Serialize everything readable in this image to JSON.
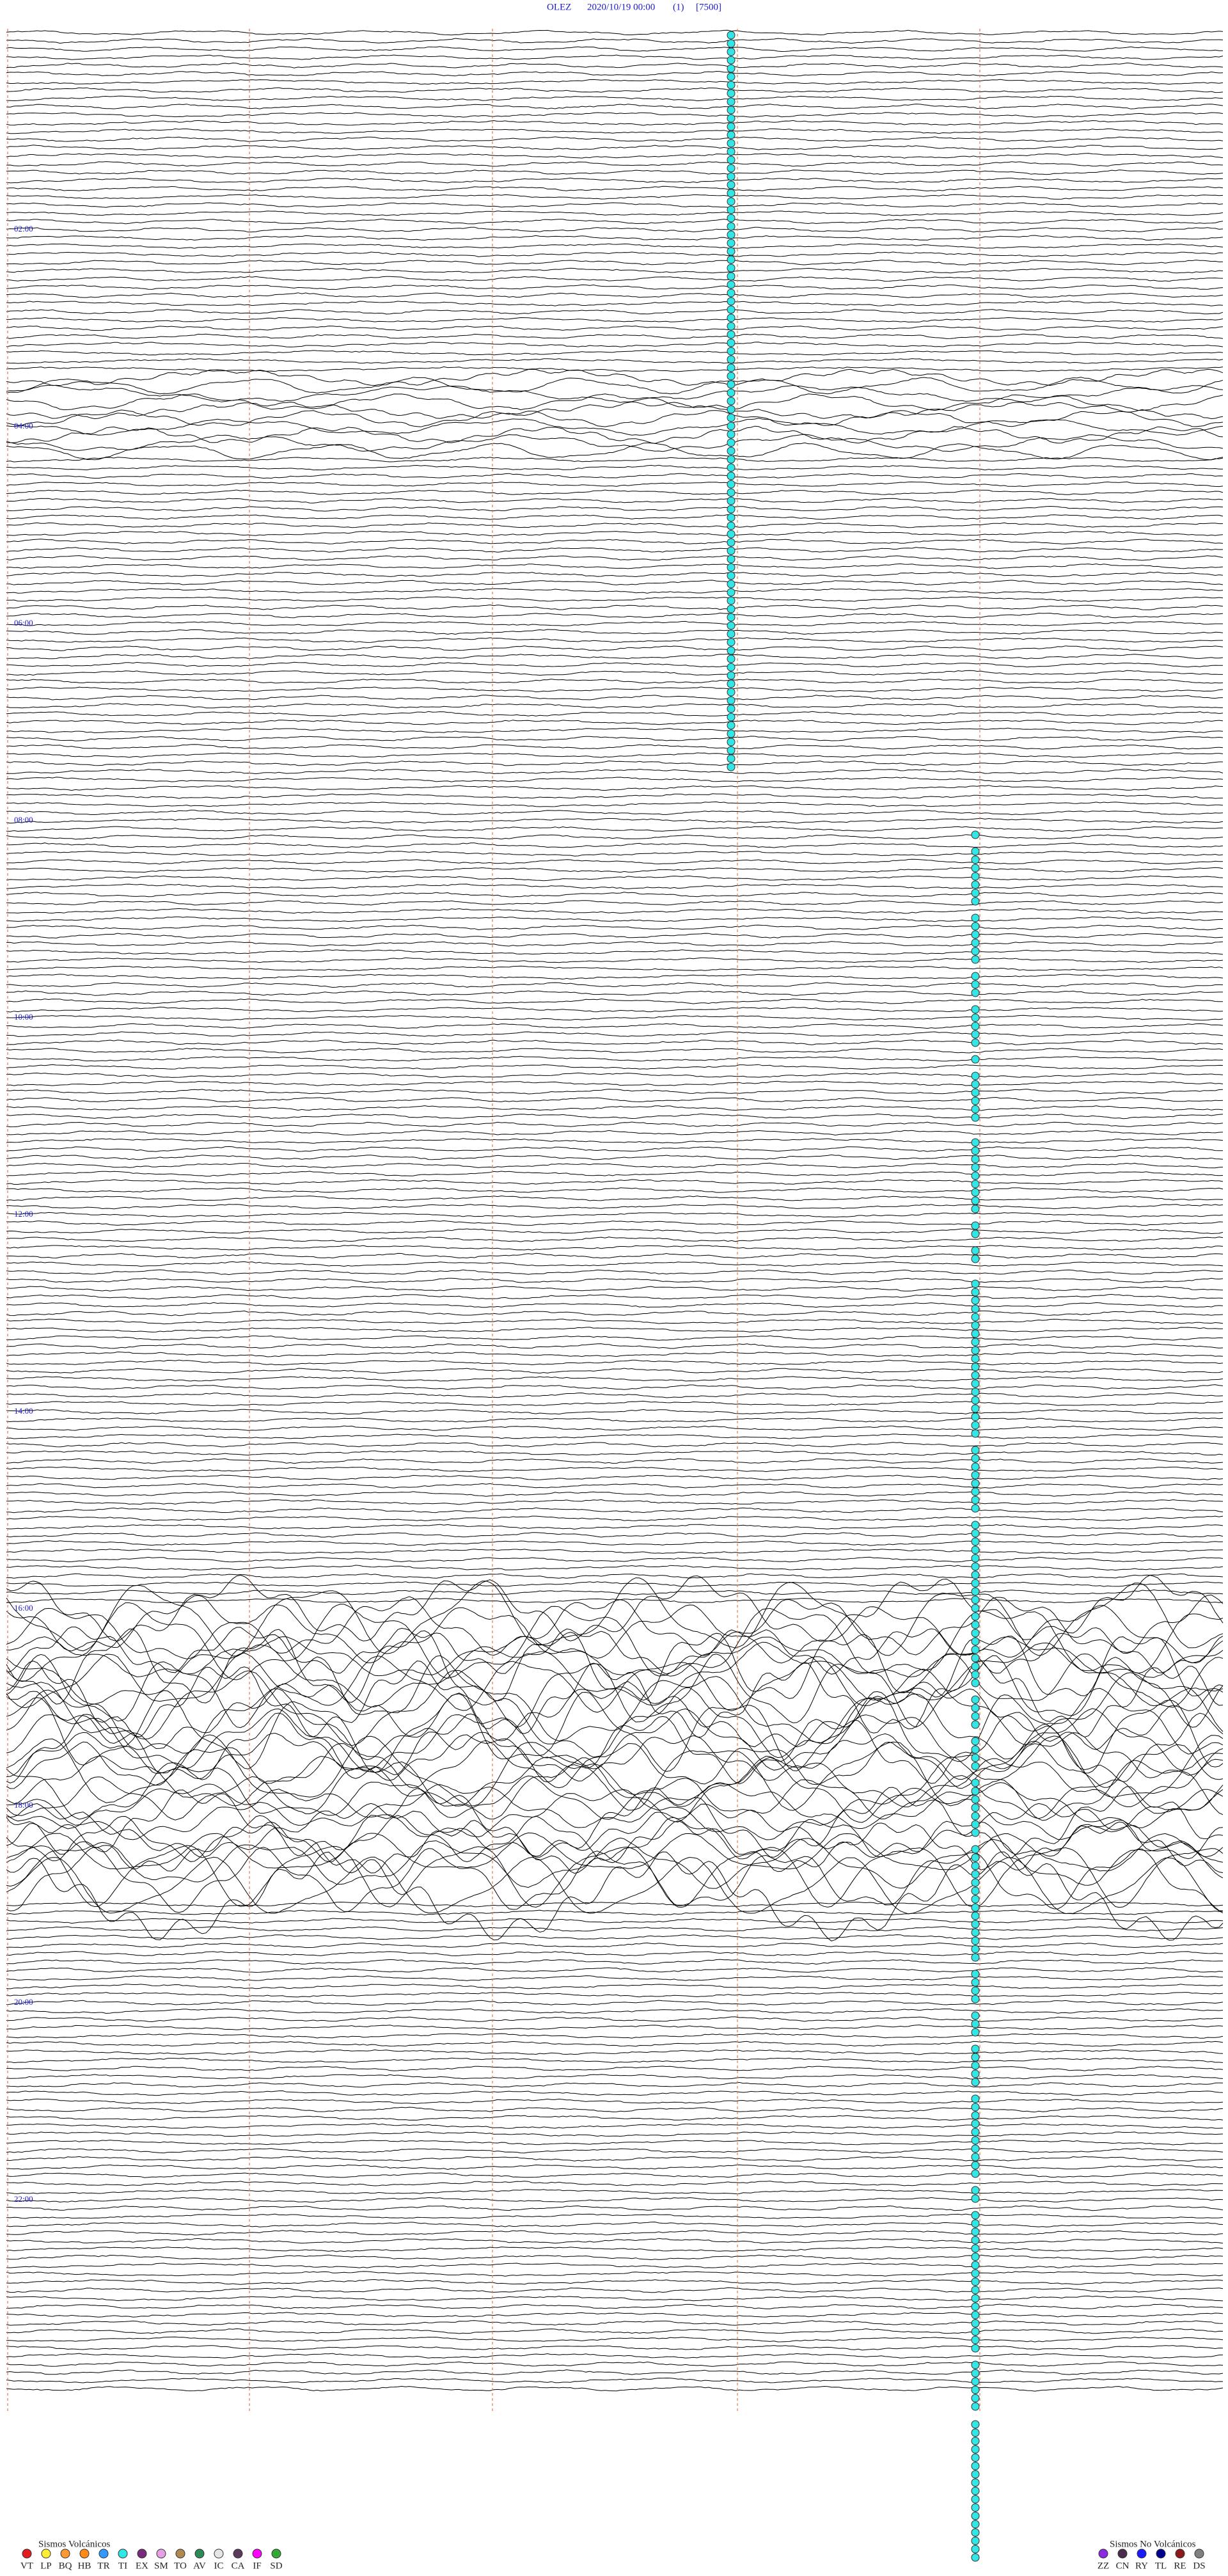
{
  "header": {
    "station": "OLEZ",
    "datetime": "2020/10/19 00:00",
    "channel": "(1)",
    "scale": "[7500]"
  },
  "hour_labels": [
    "02:00",
    "04:00",
    "06:00",
    "08:00",
    "10:00",
    "12:00",
    "14:00",
    "16:00",
    "18:00",
    "20:00",
    "22:00"
  ],
  "legend_volcanic": {
    "title": "Sismos Volcánicos",
    "items": [
      {
        "name": "VT",
        "color": "#e41a1c"
      },
      {
        "name": "LP",
        "color": "#ffee33"
      },
      {
        "name": "BQ",
        "color": "#ff9933"
      },
      {
        "name": "HB",
        "color": "#ff8c1a"
      },
      {
        "name": "TR",
        "color": "#3399ff"
      },
      {
        "name": "TI",
        "color": "#33e6e6"
      },
      {
        "name": "EX",
        "color": "#7a2a7a"
      },
      {
        "name": "SM",
        "color": "#e6a0e6"
      },
      {
        "name": "TO",
        "color": "#b08850"
      },
      {
        "name": "AV",
        "color": "#2e8b57"
      },
      {
        "name": "IC",
        "color": "#e6e6e6"
      },
      {
        "name": "CA",
        "color": "#5a3a5a"
      },
      {
        "name": "IF",
        "color": "#ff00ff"
      },
      {
        "name": "SD",
        "color": "#33aa33"
      }
    ]
  },
  "legend_non_volcanic": {
    "title": "Sismos No Volcánicos",
    "items": [
      {
        "name": "ZZ",
        "color": "#8a2be2"
      },
      {
        "name": "CN",
        "color": "#4b2a4b"
      },
      {
        "name": "RY",
        "color": "#1a1aff"
      },
      {
        "name": "TL",
        "color": "#00008b"
      },
      {
        "name": "RE",
        "color": "#8b1a1a"
      },
      {
        "name": "DS",
        "color": "#808080"
      }
    ]
  }
}
